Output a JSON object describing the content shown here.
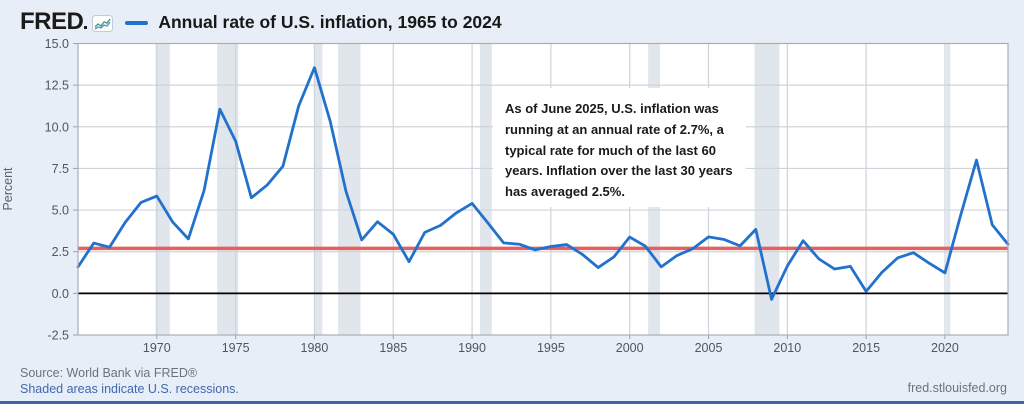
{
  "header": {
    "logo": "FRED",
    "logo_icon": "fred-sparkline-icon",
    "title": "Annual rate of U.S. inflation, 1965 to 2024"
  },
  "annotation": {
    "text": "As of June 2025, U.S. inflation was running at an annual rate of 2.7%, a typical rate for much of the last 60 years. Inflation over the last 30 years has averaged 2.5%."
  },
  "footer": {
    "source": "Source: World Bank via FRED®",
    "note": "Shaded areas indicate U.S. recessions.",
    "site": "fred.stlouisfed.org"
  },
  "colors": {
    "background": "#e8eef7",
    "plot_bg": "#ffffff",
    "grid": "#cfd4da",
    "border": "#a8afb8",
    "tick": "#9aa1a9",
    "tick_text": "#4f565e",
    "recession": "#e1e5ec",
    "series_line": "#2271cc",
    "zero_line": "#000000",
    "reference_line": "#e5605f",
    "bottom_bar": "#3b67a9"
  },
  "chart_data": {
    "type": "line",
    "title": "Annual rate of U.S. inflation, 1965 to 2024",
    "xlabel": "",
    "ylabel": "Percent",
    "x_start": 1965,
    "x_end": 2024,
    "ylim": [
      -2.5,
      15.0
    ],
    "yticks": [
      15.0,
      12.5,
      10.0,
      7.5,
      5.0,
      2.5,
      0.0,
      -2.5
    ],
    "ytick_labels": [
      "15.0",
      "12.5",
      "10.0",
      "7.5",
      "5.0",
      "2.5",
      "0.0",
      "-2.5"
    ],
    "xticks": [
      1970,
      1975,
      1980,
      1985,
      1990,
      1995,
      2000,
      2005,
      2010,
      2015,
      2020
    ],
    "grid": true,
    "legend_position": "top-title",
    "series": [
      {
        "name": "Annual rate of U.S. inflation",
        "color": "#2271cc",
        "x_first_year": 1965,
        "values": [
          1.59,
          3.02,
          2.77,
          4.27,
          5.46,
          5.84,
          4.29,
          3.27,
          6.18,
          11.05,
          9.14,
          5.74,
          6.5,
          7.63,
          11.25,
          13.55,
          10.33,
          6.13,
          3.21,
          4.3,
          3.55,
          1.9,
          3.66,
          4.08,
          4.83,
          5.4,
          4.23,
          3.03,
          2.95,
          2.61,
          2.81,
          2.93,
          2.34,
          1.55,
          2.19,
          3.38,
          2.83,
          1.59,
          2.27,
          2.68,
          3.39,
          3.23,
          2.85,
          3.84,
          -0.36,
          1.64,
          3.16,
          2.07,
          1.46,
          1.62,
          0.12,
          1.26,
          2.13,
          2.44,
          1.81,
          1.23,
          4.7,
          8.0,
          4.12,
          2.95
        ]
      }
    ],
    "reference_lines": [
      {
        "name": "zero line",
        "value": 0.0,
        "color": "#000000",
        "width": 1.8
      },
      {
        "name": "current inflation rate 2.7%",
        "value": 2.7,
        "color": "#e5605f",
        "width": 3.4
      }
    ],
    "recession_bands": [
      [
        1969.92,
        1970.83
      ],
      [
        1973.83,
        1975.17
      ],
      [
        1980.0,
        1980.5
      ],
      [
        1981.5,
        1982.92
      ],
      [
        1990.5,
        1991.25
      ],
      [
        2001.17,
        2001.92
      ],
      [
        2007.92,
        2009.5
      ],
      [
        2020.08,
        2020.33
      ]
    ]
  }
}
